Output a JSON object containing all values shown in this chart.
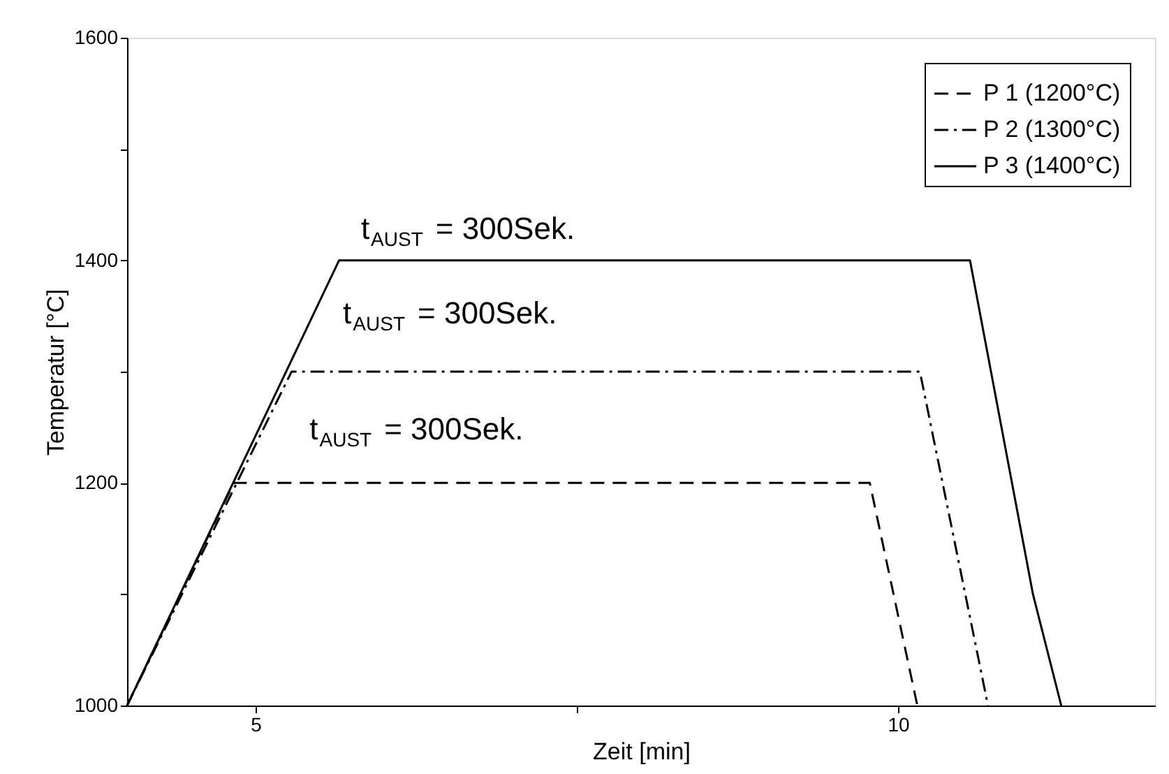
{
  "chart_data": {
    "type": "line",
    "xlabel": "Zeit [min]",
    "ylabel": "Temperatur [°C]",
    "xlim": [
      4,
      12
    ],
    "xticks": [
      5,
      {
        "value": 7.5,
        "label": null
      },
      10
    ],
    "ylim": [
      1000,
      1600
    ],
    "yticks": [
      1000,
      {
        "value": 1100,
        "label": null
      },
      1200,
      {
        "value": 1300,
        "label": null
      },
      1400,
      {
        "value": 1500,
        "label": null
      },
      1600
    ],
    "grid": false,
    "legend": "top right",
    "marker": "none",
    "series": [
      {
        "name": "P 1 (1200°C)",
        "color": "#000000",
        "line_style": "dashed",
        "x": [
          4,
          4.83,
          9.78,
          10.15
        ],
        "values": [
          1000,
          1200,
          1200,
          1000
        ]
      },
      {
        "name": "P 2 (1300°C)",
        "color": "#000000",
        "line_style": "dashdot",
        "x": [
          4,
          5.28,
          10.17,
          10.7
        ],
        "values": [
          1000,
          1300,
          1300,
          1000
        ]
      },
      {
        "name": "P 3 (1400°C)",
        "color": "#000000",
        "line_style": "solid",
        "x": [
          4,
          5.65,
          10.56,
          11.05,
          11.27
        ],
        "values": [
          1000,
          1400,
          1400,
          1100,
          1000
        ]
      }
    ],
    "annotations": [
      "t$_{AUST}$ = 300Sek.",
      "t$_{AUST}$ = 300Sek.",
      "t$_{AUST}$ = 300Sek."
    ]
  }
}
